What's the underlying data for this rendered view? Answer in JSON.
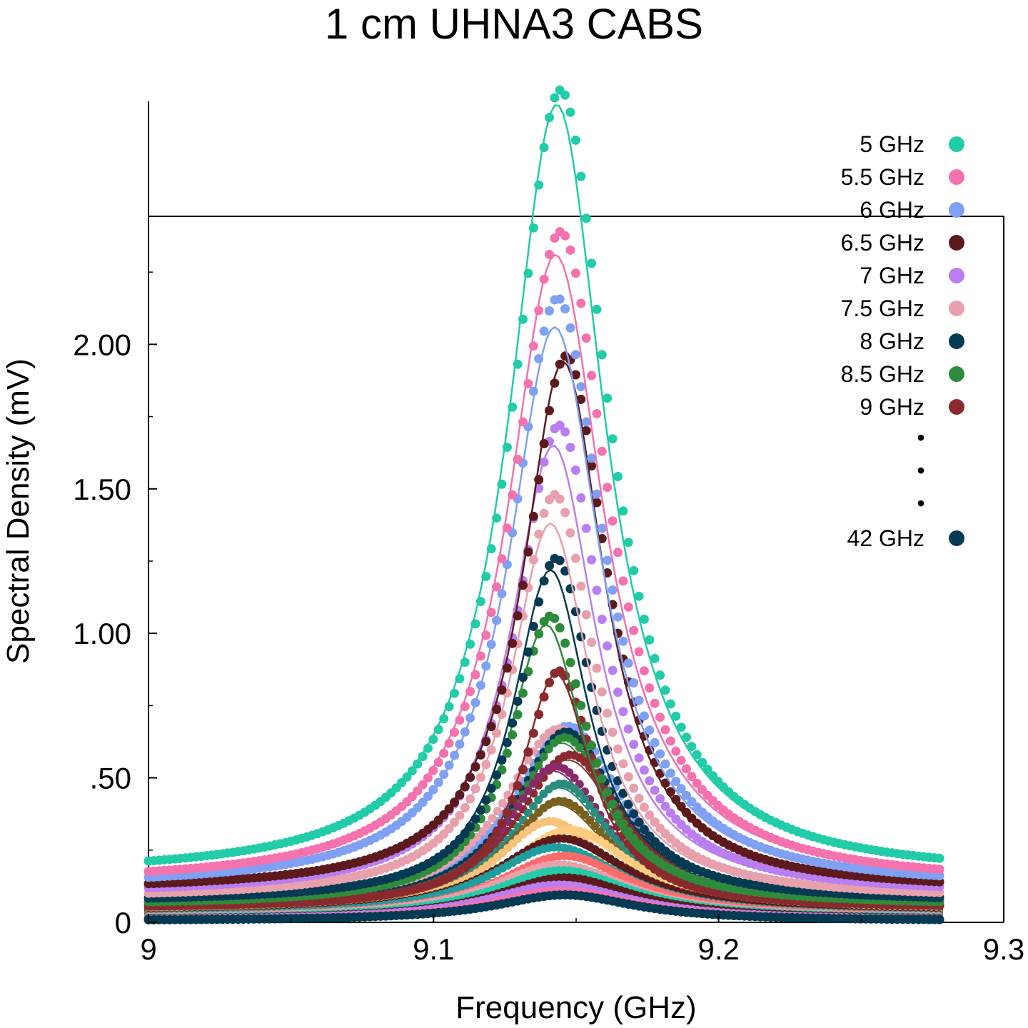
{
  "chart_data": {
    "type": "scatter",
    "title": "1 cm UHNA3 CABS",
    "xlabel": "Frequency (GHz)",
    "ylabel": "Spectral Density (mV)",
    "xlim": [
      9.0,
      9.3
    ],
    "ylim": [
      0,
      2.9
    ],
    "xticks": [
      9.0,
      9.1,
      9.2,
      9.3
    ],
    "xtick_labels": [
      "9",
      "9.1",
      "9.2",
      "9.3"
    ],
    "yticks": [
      0,
      0.5,
      1.0,
      1.5,
      2.0
    ],
    "ytick_labels": [
      "0",
      ".50",
      "1.00",
      "1.50",
      "2.00"
    ],
    "data_x_range": [
      9.0,
      9.278
    ],
    "grid": false,
    "legend_position": "top-right",
    "legend_ellipsis": [
      "•",
      "•",
      "•"
    ],
    "series": [
      {
        "name": "5 GHz",
        "color": "#22cca8",
        "peak": 2.88,
        "center": 9.1445,
        "fit_peak": 2.83,
        "fit_center": 9.1432,
        "width": 0.0205
      },
      {
        "name": "5.5 GHz",
        "color": "#f472ae",
        "peak": 2.39,
        "center": 9.1445,
        "fit_peak": 2.31,
        "fit_center": 9.1428,
        "width": 0.0205
      },
      {
        "name": "6 GHz",
        "color": "#7fa0f3",
        "peak": 2.16,
        "center": 9.1435,
        "fit_peak": 2.06,
        "fit_center": 9.1425,
        "width": 0.0195
      },
      {
        "name": "6.5 GHz",
        "color": "#5c1a1c",
        "peak": 1.96,
        "center": 9.1465,
        "fit_peak": 1.94,
        "fit_center": 9.1455,
        "width": 0.0175
      },
      {
        "name": "7 GHz",
        "color": "#b97ff0",
        "peak": 1.72,
        "center": 9.144,
        "fit_peak": 1.65,
        "fit_center": 9.142,
        "width": 0.018
      },
      {
        "name": "7.5 GHz",
        "color": "#e8a0ad",
        "peak": 1.48,
        "center": 9.1425,
        "fit_peak": 1.38,
        "fit_center": 9.141,
        "width": 0.017
      },
      {
        "name": "8 GHz",
        "color": "#053a53",
        "peak": 1.26,
        "center": 9.143,
        "fit_peak": 1.22,
        "fit_center": 9.141,
        "width": 0.016
      },
      {
        "name": "8.5 GHz",
        "color": "#2e8b3c",
        "peak": 1.06,
        "center": 9.141,
        "fit_peak": 1.03,
        "fit_center": 9.1395,
        "width": 0.016
      },
      {
        "name": "9 GHz",
        "color": "#8b2a2e",
        "peak": 0.87,
        "center": 9.144,
        "fit_peak": 0.86,
        "fit_center": 9.143,
        "width": 0.015
      },
      {
        "name": "42 GHz",
        "color": "#053a53",
        "peak": 0.095,
        "center": 9.146,
        "fit_peak": 0.095,
        "fit_center": 9.146,
        "width": 0.03
      }
    ],
    "background_series": [
      {
        "color": "#7fa0f3",
        "peak": 0.68,
        "center": 9.147,
        "width": 0.024
      },
      {
        "color": "#e8a0ad",
        "peak": 0.67,
        "center": 9.144,
        "width": 0.024
      },
      {
        "color": "#053a53",
        "peak": 0.66,
        "center": 9.1465,
        "width": 0.022
      },
      {
        "color": "#2e8b3c",
        "peak": 0.64,
        "center": 9.146,
        "width": 0.021
      },
      {
        "color": "#8b2a2e",
        "peak": 0.58,
        "center": 9.148,
        "width": 0.023
      },
      {
        "color": "#8a2a6a",
        "peak": 0.54,
        "center": 9.143,
        "width": 0.022
      },
      {
        "color": "#2a8c7c",
        "peak": 0.48,
        "center": 9.145,
        "width": 0.022
      },
      {
        "color": "#7a6020",
        "peak": 0.42,
        "center": 9.1445,
        "width": 0.023
      },
      {
        "color": "#f6c27a",
        "peak": 0.35,
        "center": 9.141,
        "width": 0.024
      },
      {
        "color": "#ffcc80",
        "peak": 0.32,
        "center": 9.148,
        "width": 0.028
      },
      {
        "color": "#5c1a1c",
        "peak": 0.29,
        "center": 9.145,
        "width": 0.029
      },
      {
        "color": "#1f9e9e",
        "peak": 0.26,
        "center": 9.143,
        "width": 0.029
      },
      {
        "color": "#ff6b6b",
        "peak": 0.23,
        "center": 9.146,
        "width": 0.029
      },
      {
        "color": "#e8a0ad",
        "peak": 0.2,
        "center": 9.144,
        "width": 0.03
      },
      {
        "color": "#22cca8",
        "peak": 0.18,
        "center": 9.145,
        "width": 0.03
      },
      {
        "color": "#5c1a1c",
        "peak": 0.155,
        "center": 9.146,
        "width": 0.03
      },
      {
        "color": "#b97ff0",
        "peak": 0.13,
        "center": 9.144,
        "width": 0.031
      },
      {
        "color": "#f472ae",
        "peak": 0.11,
        "center": 9.145,
        "width": 0.031
      }
    ]
  }
}
